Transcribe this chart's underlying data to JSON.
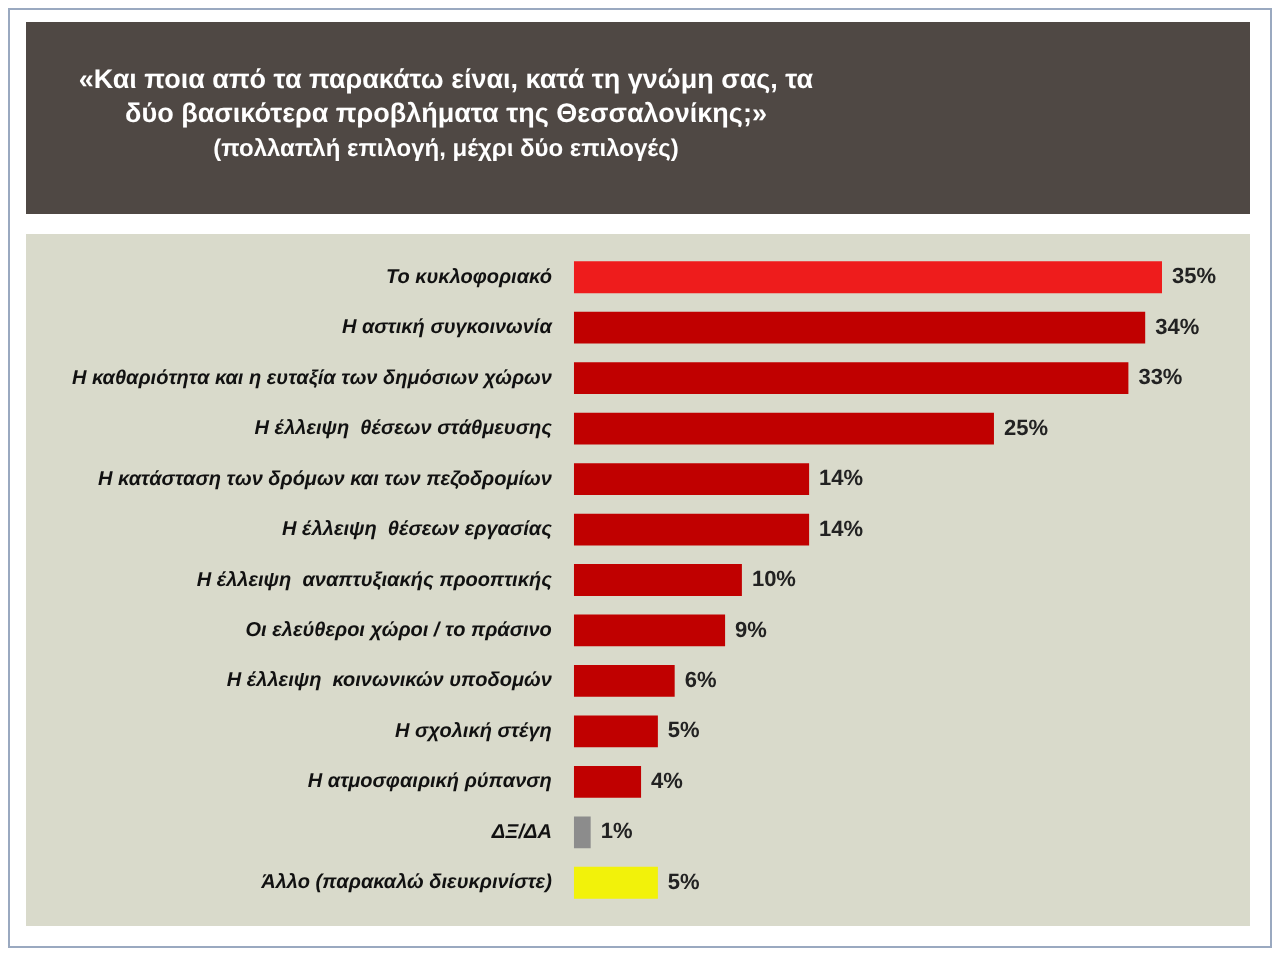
{
  "chart_data": {
    "type": "bar",
    "orientation": "horizontal",
    "title": "«Και ποια από τα παρακάτω είναι, κατά τη γνώμη σας, τα δύο βασικότερα προβλήματα της Θεσσαλονίκης;»",
    "subtitle": "(πολλαπλή επιλογή,  μέχρι δύο επιλογές)",
    "categories": [
      "Το κυκλοφοριακό",
      "Η αστική συγκοινωνία",
      "Η καθαριότητα και η ευταξία των δημόσιων χώρων",
      "Η έλλειψη  θέσεων στάθμευσης",
      "Η κατάσταση των δρόμων και των πεζοδρομίων",
      "Η έλλειψη  θέσεων εργασίας",
      "Η έλλειψη  αναπτυξιακής προοπτικής",
      "Οι ελεύθεροι χώροι / το πράσινο",
      "Η έλλειψη  κοινωνικών υποδομών",
      "Η σχολική στέγη",
      "Η ατμοσφαιρική ρύπανση",
      "ΔΞ/ΔΑ",
      "Άλλο (παρακαλώ διευκρινίστε)"
    ],
    "values": [
      35,
      34,
      33,
      25,
      14,
      14,
      10,
      9,
      6,
      5,
      4,
      1,
      5
    ],
    "value_labels": [
      "35%",
      "34%",
      "33%",
      "25%",
      "14%",
      "14%",
      "10%",
      "9%",
      "6%",
      "5%",
      "4%",
      "1%",
      "5%"
    ],
    "colors": [
      "#ee1c1c",
      "#c00000",
      "#c00000",
      "#c00000",
      "#c00000",
      "#c00000",
      "#c00000",
      "#c00000",
      "#c00000",
      "#c00000",
      "#c00000",
      "#8c8c8c",
      "#f2f20a"
    ],
    "grid": false,
    "legend": false
  }
}
